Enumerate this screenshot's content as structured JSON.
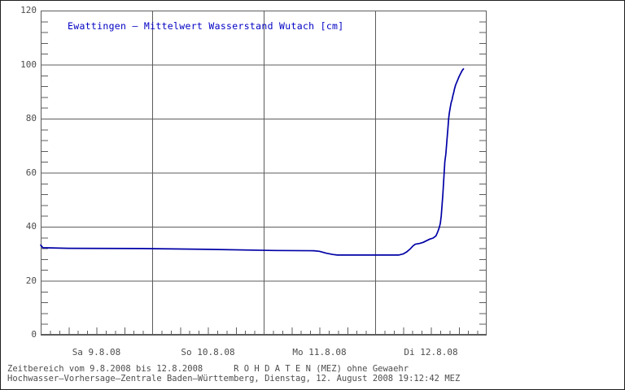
{
  "colors": {
    "title_blue": "#0000c4",
    "line_navy": "#0000a6",
    "grid_gray": "#5c5c5c",
    "text_gray": "#4d4d4d",
    "background": "#ffffff"
  },
  "footer": {
    "line1": "Zeitbereich vom 9.8.2008 bis 12.8.2008      R O H D A T E N (MEZ) ohne Gewaehr",
    "line2": "Hochwasser–Vorhersage–Zentrale Baden–Württemberg, Dienstag, 12. August 2008 19:12:42 MEZ"
  },
  "chart_data": {
    "type": "line",
    "title": "Ewattingen – Mittelwert Wasserstand Wutach [cm]",
    "station": "Ewattingen",
    "river": "Wutach",
    "unit": "cm",
    "ylim": [
      0,
      120
    ],
    "yticks": [
      0,
      20,
      40,
      60,
      80,
      100,
      120
    ],
    "y_minor_step": 4,
    "x_range_days": 4,
    "x_day_labels": [
      "Sa 9.8.08",
      "So 10.8.08",
      "Mo 11.8.08",
      "Di 12.8.08"
    ],
    "x_minor_hours": 2,
    "x_medium_hours": 6,
    "grid": true,
    "series": [
      {
        "name": "Mittelwert Wasserstand Wutach [cm]",
        "points": [
          [
            0.0,
            33.2
          ],
          [
            0.02,
            32.2
          ],
          [
            0.25,
            32.0
          ],
          [
            0.9,
            31.9
          ],
          [
            1.5,
            31.6
          ],
          [
            2.1,
            31.2
          ],
          [
            2.45,
            31.1
          ],
          [
            2.5,
            30.9
          ],
          [
            2.56,
            30.2
          ],
          [
            2.62,
            29.7
          ],
          [
            2.66,
            29.5
          ],
          [
            3.21,
            29.5
          ],
          [
            3.25,
            29.9
          ],
          [
            3.28,
            30.6
          ],
          [
            3.31,
            31.6
          ],
          [
            3.34,
            32.9
          ],
          [
            3.36,
            33.5
          ],
          [
            3.4,
            33.8
          ],
          [
            3.43,
            34.2
          ],
          [
            3.46,
            34.8
          ],
          [
            3.49,
            35.4
          ],
          [
            3.52,
            35.8
          ],
          [
            3.545,
            36.6
          ],
          [
            3.556,
            37.6
          ],
          [
            3.566,
            38.6
          ],
          [
            3.576,
            39.8
          ],
          [
            3.585,
            41.3
          ],
          [
            3.593,
            44.0
          ],
          [
            3.6,
            48.0
          ],
          [
            3.607,
            52.0
          ],
          [
            3.613,
            56.0
          ],
          [
            3.619,
            60.0
          ],
          [
            3.625,
            64.0
          ],
          [
            3.634,
            67.0
          ],
          [
            3.644,
            72.0
          ],
          [
            3.652,
            76.0
          ],
          [
            3.659,
            80.0
          ],
          [
            3.665,
            82.0
          ],
          [
            3.673,
            84.0
          ],
          [
            3.682,
            86.0
          ],
          [
            3.69,
            87.0
          ],
          [
            3.697,
            88.5
          ],
          [
            3.704,
            89.5
          ],
          [
            3.712,
            91.0
          ],
          [
            3.722,
            92.5
          ],
          [
            3.737,
            94.0
          ],
          [
            3.752,
            95.5
          ],
          [
            3.768,
            96.8
          ],
          [
            3.78,
            97.8
          ],
          [
            3.792,
            98.4
          ]
        ]
      }
    ]
  }
}
